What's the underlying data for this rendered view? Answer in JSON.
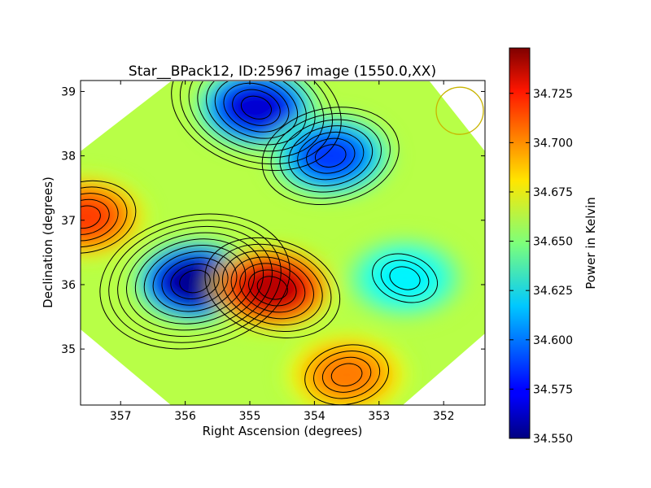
{
  "chart_data": {
    "type": "heatmap",
    "title": "Star__BPack12, ID:25967 image (1550.0,XX)",
    "xlabel": "Right Ascension (degrees)",
    "ylabel": "Declination (degrees)",
    "x_ticks": [
      357,
      356,
      355,
      354,
      353,
      352
    ],
    "y_ticks": [
      35,
      36,
      37,
      38,
      39
    ],
    "xlim": [
      357.62,
      351.36
    ],
    "ylim": [
      34.13,
      39.17
    ],
    "colorbar": {
      "label": "Power in Kelvin",
      "ticks": [
        "34.550",
        "34.575",
        "34.600",
        "34.625",
        "34.650",
        "34.675",
        "34.700",
        "34.725"
      ],
      "range": [
        34.55,
        34.748
      ],
      "colormap": "jet"
    },
    "features": [
      {
        "ra": 355.85,
        "dec": 36.05,
        "value": 34.552,
        "kind": "minimum"
      },
      {
        "ra": 354.65,
        "dec": 35.95,
        "value": 34.738,
        "kind": "maximum"
      },
      {
        "ra": 357.55,
        "dec": 37.05,
        "value": 34.712,
        "kind": "maximum"
      },
      {
        "ra": 354.9,
        "dec": 38.75,
        "value": 34.565,
        "kind": "minimum"
      },
      {
        "ra": 353.75,
        "dec": 38.0,
        "value": 34.585,
        "kind": "minimum"
      },
      {
        "ra": 352.6,
        "dec": 36.1,
        "value": 34.622,
        "kind": "minimum"
      },
      {
        "ra": 353.5,
        "dec": 34.6,
        "value": 34.7,
        "kind": "maximum"
      }
    ],
    "beam_marker": {
      "ra": 351.75,
      "dec": 38.7,
      "color": "#c8b400"
    },
    "background_value": 34.66,
    "grid": false
  }
}
